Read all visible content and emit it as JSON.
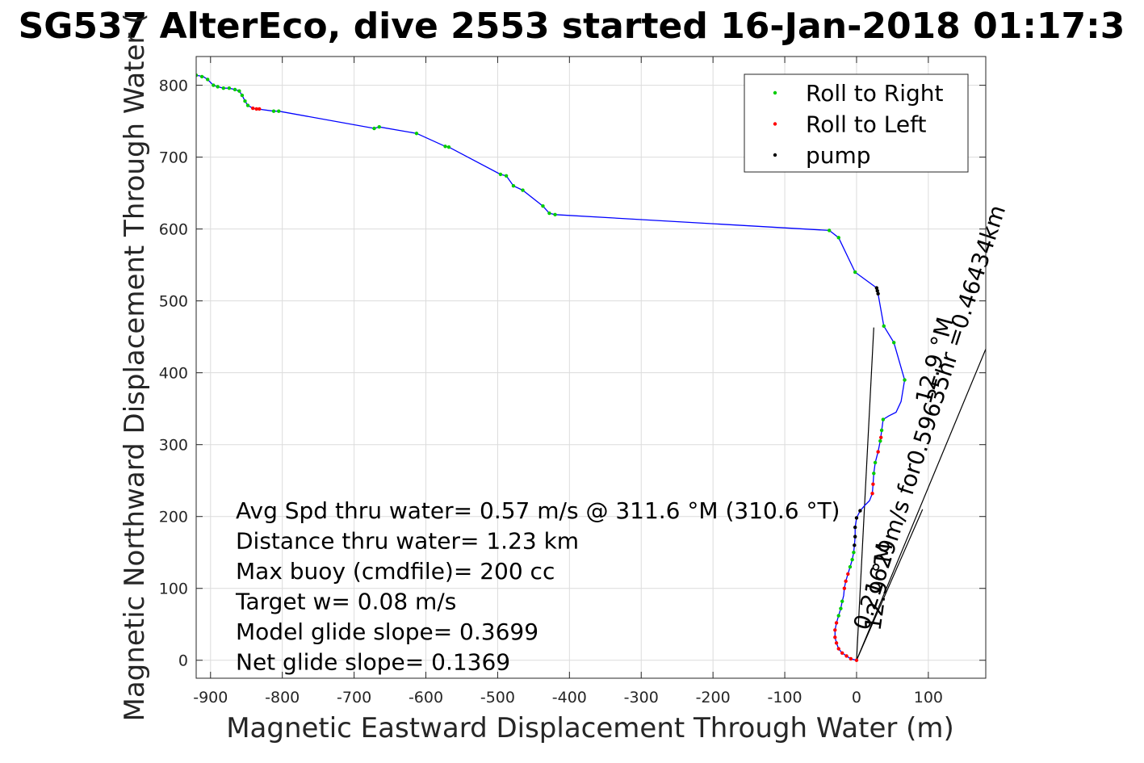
{
  "chart_data": {
    "type": "line",
    "title": "SG537 AlterEco, dive 2553 started 16-Jan-2018 01:17:3",
    "xlabel": "Magnetic Eastward Displacement Through Water (m)",
    "ylabel": "Magnetic Northward Displacement Through Water (",
    "xlim": [
      -920,
      180
    ],
    "ylim": [
      -25,
      840
    ],
    "xticks": [
      -900,
      -800,
      -700,
      -600,
      -500,
      -400,
      -300,
      -200,
      -100,
      0,
      100
    ],
    "yticks": [
      0,
      100,
      200,
      300,
      400,
      500,
      600,
      700,
      800
    ],
    "grid": true,
    "legend_position": "top-right",
    "legend": [
      {
        "label": "Roll to Right",
        "color": "#00cc00"
      },
      {
        "label": "Roll to Left",
        "color": "#ff0000"
      },
      {
        "label": "pump",
        "color": "#000000"
      }
    ],
    "track_color": "#0000ff",
    "track": [
      [
        0,
        0
      ],
      [
        -8,
        2
      ],
      [
        -14,
        6
      ],
      [
        -20,
        10
      ],
      [
        -25,
        16
      ],
      [
        -28,
        24
      ],
      [
        -30,
        32
      ],
      [
        -30,
        42
      ],
      [
        -28,
        52
      ],
      [
        -25,
        62
      ],
      [
        -22,
        72
      ],
      [
        -20,
        82
      ],
      [
        -18,
        90
      ],
      [
        -17,
        100
      ],
      [
        -15,
        110
      ],
      [
        -12,
        120
      ],
      [
        -9,
        130
      ],
      [
        -6,
        140
      ],
      [
        -4,
        150
      ],
      [
        -3,
        160
      ],
      [
        -2,
        172
      ],
      [
        -2,
        185
      ],
      [
        0,
        198
      ],
      [
        5,
        208
      ],
      [
        12,
        216
      ],
      [
        18,
        222
      ],
      [
        22,
        232
      ],
      [
        23,
        245
      ],
      [
        24,
        260
      ],
      [
        26,
        275
      ],
      [
        30,
        290
      ],
      [
        33,
        305
      ],
      [
        35,
        320
      ],
      [
        37,
        335
      ],
      [
        45,
        340
      ],
      [
        55,
        345
      ],
      [
        62,
        360
      ],
      [
        67,
        390
      ],
      [
        52,
        442
      ],
      [
        38,
        465
      ],
      [
        30,
        510
      ],
      [
        28,
        518
      ],
      [
        -2,
        540
      ],
      [
        -25,
        588
      ],
      [
        -38,
        598
      ],
      [
        -420,
        620
      ],
      [
        -428,
        622
      ],
      [
        -437,
        632
      ],
      [
        -465,
        654
      ],
      [
        -478,
        660
      ],
      [
        -488,
        674
      ],
      [
        -496,
        676
      ],
      [
        -568,
        714
      ],
      [
        -573,
        715
      ],
      [
        -613,
        733
      ],
      [
        -665,
        742
      ],
      [
        -672,
        740
      ],
      [
        -805,
        764
      ],
      [
        -812,
        764
      ],
      [
        -834,
        767
      ],
      [
        -841,
        768
      ],
      [
        -848,
        772
      ],
      [
        -852,
        778
      ],
      [
        -856,
        786
      ],
      [
        -860,
        792
      ],
      [
        -866,
        794
      ],
      [
        -874,
        796
      ],
      [
        -882,
        796
      ],
      [
        -890,
        798
      ],
      [
        -896,
        800
      ],
      [
        -904,
        808
      ],
      [
        -910,
        812
      ],
      [
        -920,
        814
      ]
    ],
    "roll_right_points": [
      [
        -920,
        814
      ],
      [
        -912,
        812
      ],
      [
        -904,
        808
      ],
      [
        -896,
        800
      ],
      [
        -890,
        798
      ],
      [
        -882,
        796
      ],
      [
        -874,
        796
      ],
      [
        -866,
        794
      ],
      [
        -860,
        792
      ],
      [
        -856,
        786
      ],
      [
        -852,
        778
      ],
      [
        -848,
        772
      ],
      [
        -812,
        764
      ],
      [
        -805,
        764
      ],
      [
        -672,
        740
      ],
      [
        -665,
        742
      ],
      [
        -613,
        733
      ],
      [
        -573,
        715
      ],
      [
        -568,
        714
      ],
      [
        -496,
        676
      ],
      [
        -488,
        674
      ],
      [
        -478,
        660
      ],
      [
        -465,
        654
      ],
      [
        -437,
        632
      ],
      [
        -428,
        622
      ],
      [
        -420,
        620
      ],
      [
        -38,
        598
      ],
      [
        -25,
        588
      ],
      [
        -2,
        540
      ],
      [
        38,
        465
      ],
      [
        52,
        442
      ],
      [
        67,
        390
      ],
      [
        37,
        335
      ],
      [
        35,
        320
      ],
      [
        33,
        305
      ],
      [
        26,
        275
      ],
      [
        24,
        260
      ],
      [
        -4,
        150
      ],
      [
        -6,
        140
      ],
      [
        -9,
        130
      ],
      [
        -20,
        82
      ],
      [
        -22,
        72
      ],
      [
        -25,
        62
      ]
    ],
    "roll_left_points": [
      [
        -841,
        768
      ],
      [
        -836,
        767
      ],
      [
        -832,
        767
      ],
      [
        0,
        0
      ],
      [
        -8,
        2
      ],
      [
        -14,
        6
      ],
      [
        -20,
        10
      ],
      [
        -25,
        16
      ],
      [
        -28,
        24
      ],
      [
        -30,
        32
      ],
      [
        -30,
        42
      ],
      [
        -28,
        52
      ],
      [
        -17,
        100
      ],
      [
        -15,
        110
      ],
      [
        -12,
        120
      ],
      [
        22,
        232
      ],
      [
        23,
        245
      ],
      [
        30,
        290
      ],
      [
        34,
        310
      ]
    ],
    "pump_points": [
      [
        28,
        518
      ],
      [
        29,
        514
      ],
      [
        30,
        510
      ],
      [
        -3,
        160
      ],
      [
        -2,
        172
      ],
      [
        -2,
        185
      ],
      [
        0,
        198
      ],
      [
        5,
        208
      ]
    ],
    "heading_lines": [
      {
        "from": [
          0,
          0
        ],
        "to": [
          24,
          463
        ]
      },
      {
        "from": [
          0,
          0
        ],
        "to": [
          185,
          445
        ]
      },
      {
        "from": [
          0,
          0
        ],
        "to": [
          92,
          210
        ]
      }
    ],
    "annotations": [
      "Avg Spd thru water=  0.57 m/s @ 311.6 °M (310.6 °T)",
      "Distance thru water=  1.23 km",
      "Max buoy (cmdfile)= 200 cc",
      "Target w= 0.08 m/s",
      "Model glide slope= 0.3699",
      "Net glide slope= 0.1369"
    ],
    "rotated_labels": [
      "0.21629m/s for0.59635hr =0.46434km",
      "12.9 °M",
      "12.9 °M"
    ]
  }
}
